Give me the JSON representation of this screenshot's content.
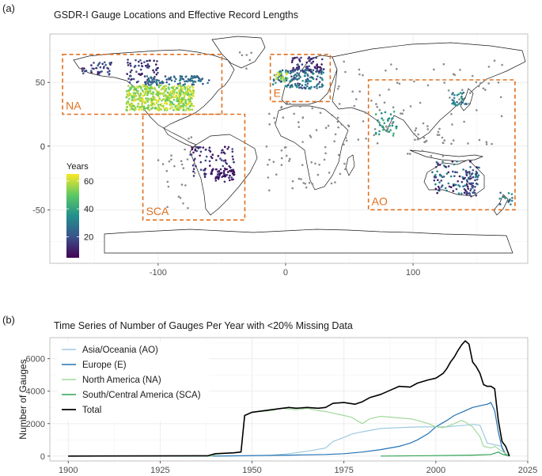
{
  "panel_a": {
    "label": "(a)",
    "chart_data": {
      "type": "scatter",
      "title": "GSDR-I Gauge Locations and Effective Record Lengths",
      "x_ticks": [
        -100,
        0,
        100
      ],
      "y_ticks": [
        50,
        0,
        -50
      ],
      "xlim": [
        -185,
        190
      ],
      "ylim": [
        -92,
        88
      ],
      "colorbar": {
        "title": "Years",
        "ticks": [
          60,
          40,
          20
        ],
        "range": [
          5,
          65
        ]
      },
      "regions": [
        {
          "name": "NA",
          "lon": [
            -175,
            -50
          ],
          "lat": [
            25,
            72
          ]
        },
        {
          "name": "E",
          "lon": [
            -12,
            35
          ],
          "lat": [
            35,
            72
          ]
        },
        {
          "name": "SCA",
          "lon": [
            -112,
            -32
          ],
          "lat": [
            -58,
            25
          ]
        },
        {
          "name": "AO",
          "lon": [
            65,
            180
          ],
          "lat": [
            -50,
            52
          ]
        }
      ],
      "colors": {
        "region_box": "#e07020",
        "land_outline": "#1a1a1a",
        "gauge_other": "#808080"
      }
    }
  },
  "panel_b": {
    "label": "(b)",
    "chart_data": {
      "type": "line",
      "title": "Time Series of Number of Gauges Per Year with <20% Missing Data",
      "ylabel": "Number of Gauges",
      "xlabel": "",
      "xlim": [
        1895,
        2025
      ],
      "ylim": [
        -300,
        7300
      ],
      "x_ticks": [
        1900,
        1925,
        1950,
        1975,
        2000,
        2025
      ],
      "y_ticks": [
        0,
        2000,
        4000,
        6000
      ],
      "legend_position": "top-left",
      "series": [
        {
          "name": "Asia/Oceania (AO)",
          "color": "#9ecae1",
          "points": [
            [
              1900,
              0
            ],
            [
              1940,
              0
            ],
            [
              1950,
              20
            ],
            [
              1955,
              50
            ],
            [
              1960,
              150
            ],
            [
              1965,
              300
            ],
            [
              1970,
              500
            ],
            [
              1972,
              900
            ],
            [
              1975,
              1150
            ],
            [
              1977,
              1350
            ],
            [
              1980,
              1500
            ],
            [
              1985,
              1700
            ],
            [
              1990,
              1750
            ],
            [
              1995,
              1800
            ],
            [
              2000,
              1800
            ],
            [
              2003,
              1800
            ],
            [
              2005,
              1850
            ],
            [
              2008,
              1900
            ],
            [
              2010,
              1950
            ],
            [
              2012,
              1900
            ],
            [
              2014,
              800
            ],
            [
              2016,
              700
            ],
            [
              2018,
              600
            ],
            [
              2019,
              100
            ],
            [
              2020,
              50
            ]
          ]
        },
        {
          "name": "Europe (E)",
          "color": "#2171b5",
          "points": [
            [
              1900,
              0
            ],
            [
              1940,
              0
            ],
            [
              1950,
              30
            ],
            [
              1960,
              60
            ],
            [
              1970,
              100
            ],
            [
              1975,
              150
            ],
            [
              1980,
              250
            ],
            [
              1985,
              400
            ],
            [
              1990,
              600
            ],
            [
              1993,
              800
            ],
            [
              1995,
              1000
            ],
            [
              1998,
              1400
            ],
            [
              2000,
              1800
            ],
            [
              2003,
              2200
            ],
            [
              2005,
              2500
            ],
            [
              2008,
              2800
            ],
            [
              2010,
              3000
            ],
            [
              2012,
              3100
            ],
            [
              2014,
              3200
            ],
            [
              2015,
              3300
            ],
            [
              2016,
              2800
            ],
            [
              2017,
              1500
            ],
            [
              2018,
              500
            ],
            [
              2019,
              100
            ],
            [
              2020,
              50
            ]
          ]
        },
        {
          "name": "North America (NA)",
          "color": "#a1d99b",
          "points": [
            [
              1900,
              0
            ],
            [
              1939,
              0
            ],
            [
              1940,
              100
            ],
            [
              1947,
              250
            ],
            [
              1948,
              2500
            ],
            [
              1950,
              2700
            ],
            [
              1955,
              2800
            ],
            [
              1958,
              2950
            ],
            [
              1960,
              2900
            ],
            [
              1962,
              2850
            ],
            [
              1965,
              2950
            ],
            [
              1968,
              2800
            ],
            [
              1970,
              2750
            ],
            [
              1972,
              2650
            ],
            [
              1975,
              2500
            ],
            [
              1977,
              2400
            ],
            [
              1980,
              2000
            ],
            [
              1982,
              2300
            ],
            [
              1985,
              2450
            ],
            [
              1988,
              2400
            ],
            [
              1990,
              2350
            ],
            [
              1993,
              2300
            ],
            [
              1995,
              2200
            ],
            [
              1998,
              2000
            ],
            [
              2000,
              1800
            ],
            [
              2002,
              1750
            ],
            [
              2005,
              2000
            ],
            [
              2007,
              2200
            ],
            [
              2008,
              2100
            ],
            [
              2010,
              1800
            ],
            [
              2012,
              1200
            ],
            [
              2013,
              600
            ],
            [
              2015,
              500
            ],
            [
              2016,
              600
            ],
            [
              2018,
              300
            ],
            [
              2020,
              0
            ]
          ]
        },
        {
          "name": "South/Central America (SCA)",
          "color": "#31a354",
          "points": [
            [
              1985,
              0
            ],
            [
              2000,
              30
            ],
            [
              2010,
              60
            ],
            [
              2015,
              100
            ],
            [
              2017,
              250
            ],
            [
              2018,
              120
            ],
            [
              2020,
              0
            ]
          ]
        },
        {
          "name": "Total",
          "color": "#000000",
          "points": [
            [
              1900,
              0
            ],
            [
              1938,
              20
            ],
            [
              1940,
              150
            ],
            [
              1945,
              200
            ],
            [
              1947,
              250
            ],
            [
              1948,
              2500
            ],
            [
              1950,
              2700
            ],
            [
              1955,
              2850
            ],
            [
              1960,
              3000
            ],
            [
              1962,
              2950
            ],
            [
              1965,
              3000
            ],
            [
              1968,
              2950
            ],
            [
              1970,
              3000
            ],
            [
              1972,
              3250
            ],
            [
              1975,
              3300
            ],
            [
              1978,
              3200
            ],
            [
              1980,
              3350
            ],
            [
              1982,
              3600
            ],
            [
              1985,
              3800
            ],
            [
              1988,
              4100
            ],
            [
              1990,
              4300
            ],
            [
              1993,
              4250
            ],
            [
              1995,
              4500
            ],
            [
              1998,
              4700
            ],
            [
              2000,
              4800
            ],
            [
              2002,
              5100
            ],
            [
              2003,
              5400
            ],
            [
              2004,
              5800
            ],
            [
              2005,
              6100
            ],
            [
              2006,
              6500
            ],
            [
              2007,
              6850
            ],
            [
              2008,
              7100
            ],
            [
              2009,
              6900
            ],
            [
              2010,
              5800
            ],
            [
              2011,
              5500
            ],
            [
              2012,
              5100
            ],
            [
              2013,
              4400
            ],
            [
              2014,
              4300
            ],
            [
              2015,
              4300
            ],
            [
              2016,
              4150
            ],
            [
              2017,
              2200
            ],
            [
              2018,
              900
            ],
            [
              2019,
              600
            ],
            [
              2020,
              0
            ]
          ]
        }
      ]
    }
  }
}
